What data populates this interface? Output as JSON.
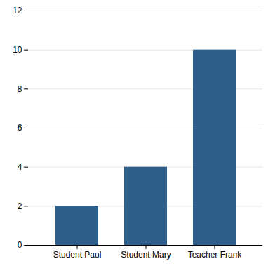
{
  "chart_data": {
    "type": "bar",
    "categories": [
      "Student Paul",
      "Student Mary",
      "Teacher Frank"
    ],
    "values": [
      2,
      4,
      10
    ],
    "color": "#2E5F8A",
    "ylim": [
      0,
      12
    ],
    "yticks": [
      0,
      2,
      4,
      6,
      8,
      10,
      12
    ],
    "grid": true
  }
}
